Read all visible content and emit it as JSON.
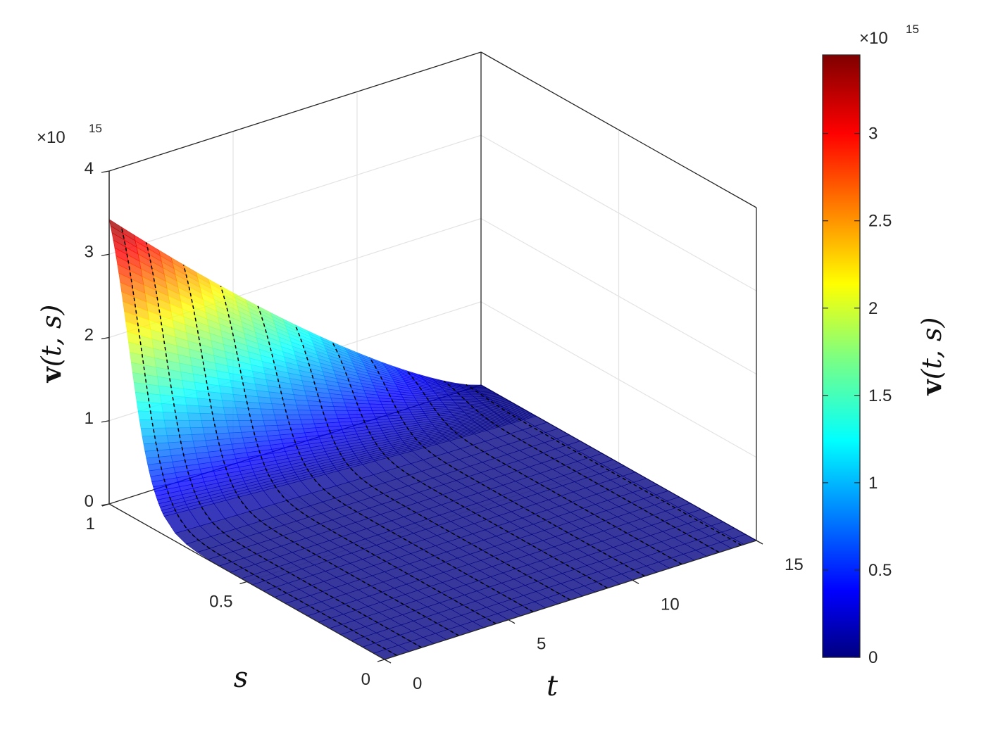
{
  "chart_data": {
    "type": "surface",
    "colormap": "jet",
    "z_multiplier": "×10",
    "z_exponent": "15",
    "x_axis": {
      "label": "t",
      "ticks": [
        "0",
        "5",
        "10",
        "15"
      ],
      "range": [
        0,
        15
      ]
    },
    "y_axis": {
      "label": "s",
      "ticks": [
        "0",
        "0.5",
        "1"
      ],
      "range": [
        0,
        1
      ]
    },
    "z_axis": {
      "label_main": "v",
      "label_args": "(t, s)",
      "ticks": [
        "0",
        "1",
        "2",
        "3",
        "4"
      ],
      "range": [
        0,
        4
      ]
    },
    "colorbar": {
      "label_main": "v",
      "label_args": "(t, s)",
      "multiplier": "×10",
      "exponent": "15",
      "ticks": [
        "0",
        "0.5",
        "1",
        "1.5",
        "2",
        "2.5",
        "3"
      ],
      "range": [
        0,
        3.45
      ]
    },
    "grid": true,
    "description_values": {
      "max_value_at_t0_s1": 3.42,
      "value_at_t15_s1": 0,
      "value_for_s_below_0.9": 0
    },
    "contour_t_values": [
      0.5,
      1.5,
      3,
      4.5,
      6,
      7.5,
      9,
      10.5,
      12,
      13.5,
      14.4
    ],
    "colors": {
      "frame": "#262626",
      "grid": "#e3e3e3",
      "contour": "#000000"
    }
  }
}
